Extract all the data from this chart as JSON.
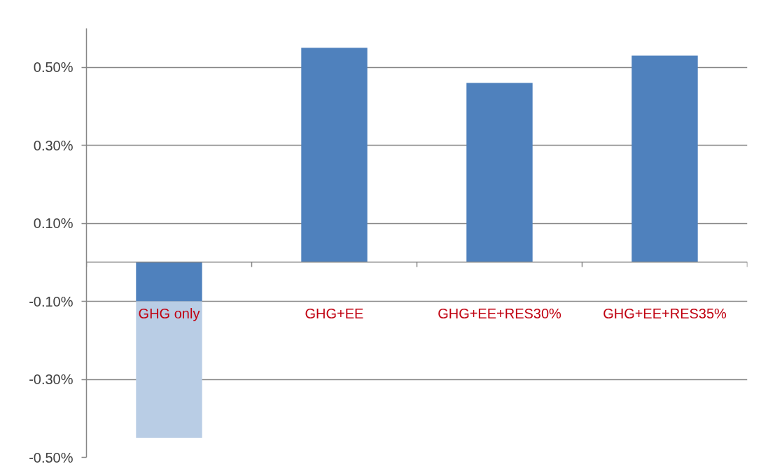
{
  "chart_data": {
    "type": "bar",
    "stacked": true,
    "categories": [
      "GHG only",
      "GHG+EE",
      "GHG+EE+RES30%",
      "GHG+EE+RES35%"
    ],
    "series": [
      {
        "color": "#4f81bd",
        "values": [
          -0.1,
          0.55,
          0.46,
          0.53
        ]
      },
      {
        "color": "#b9cde5",
        "values": [
          -0.35,
          null,
          null,
          null
        ]
      }
    ],
    "ylim": [
      -0.5,
      0.6
    ],
    "yticks": [
      {
        "value": -0.5,
        "label": "-0.50%"
      },
      {
        "value": -0.3,
        "label": "-0.30%"
      },
      {
        "value": -0.1,
        "label": "-0.10%"
      },
      {
        "value": 0.1,
        "label": "0.10%"
      },
      {
        "value": 0.3,
        "label": "0.30%"
      },
      {
        "value": 0.5,
        "label": "0.50%"
      }
    ],
    "grid": "y"
  }
}
